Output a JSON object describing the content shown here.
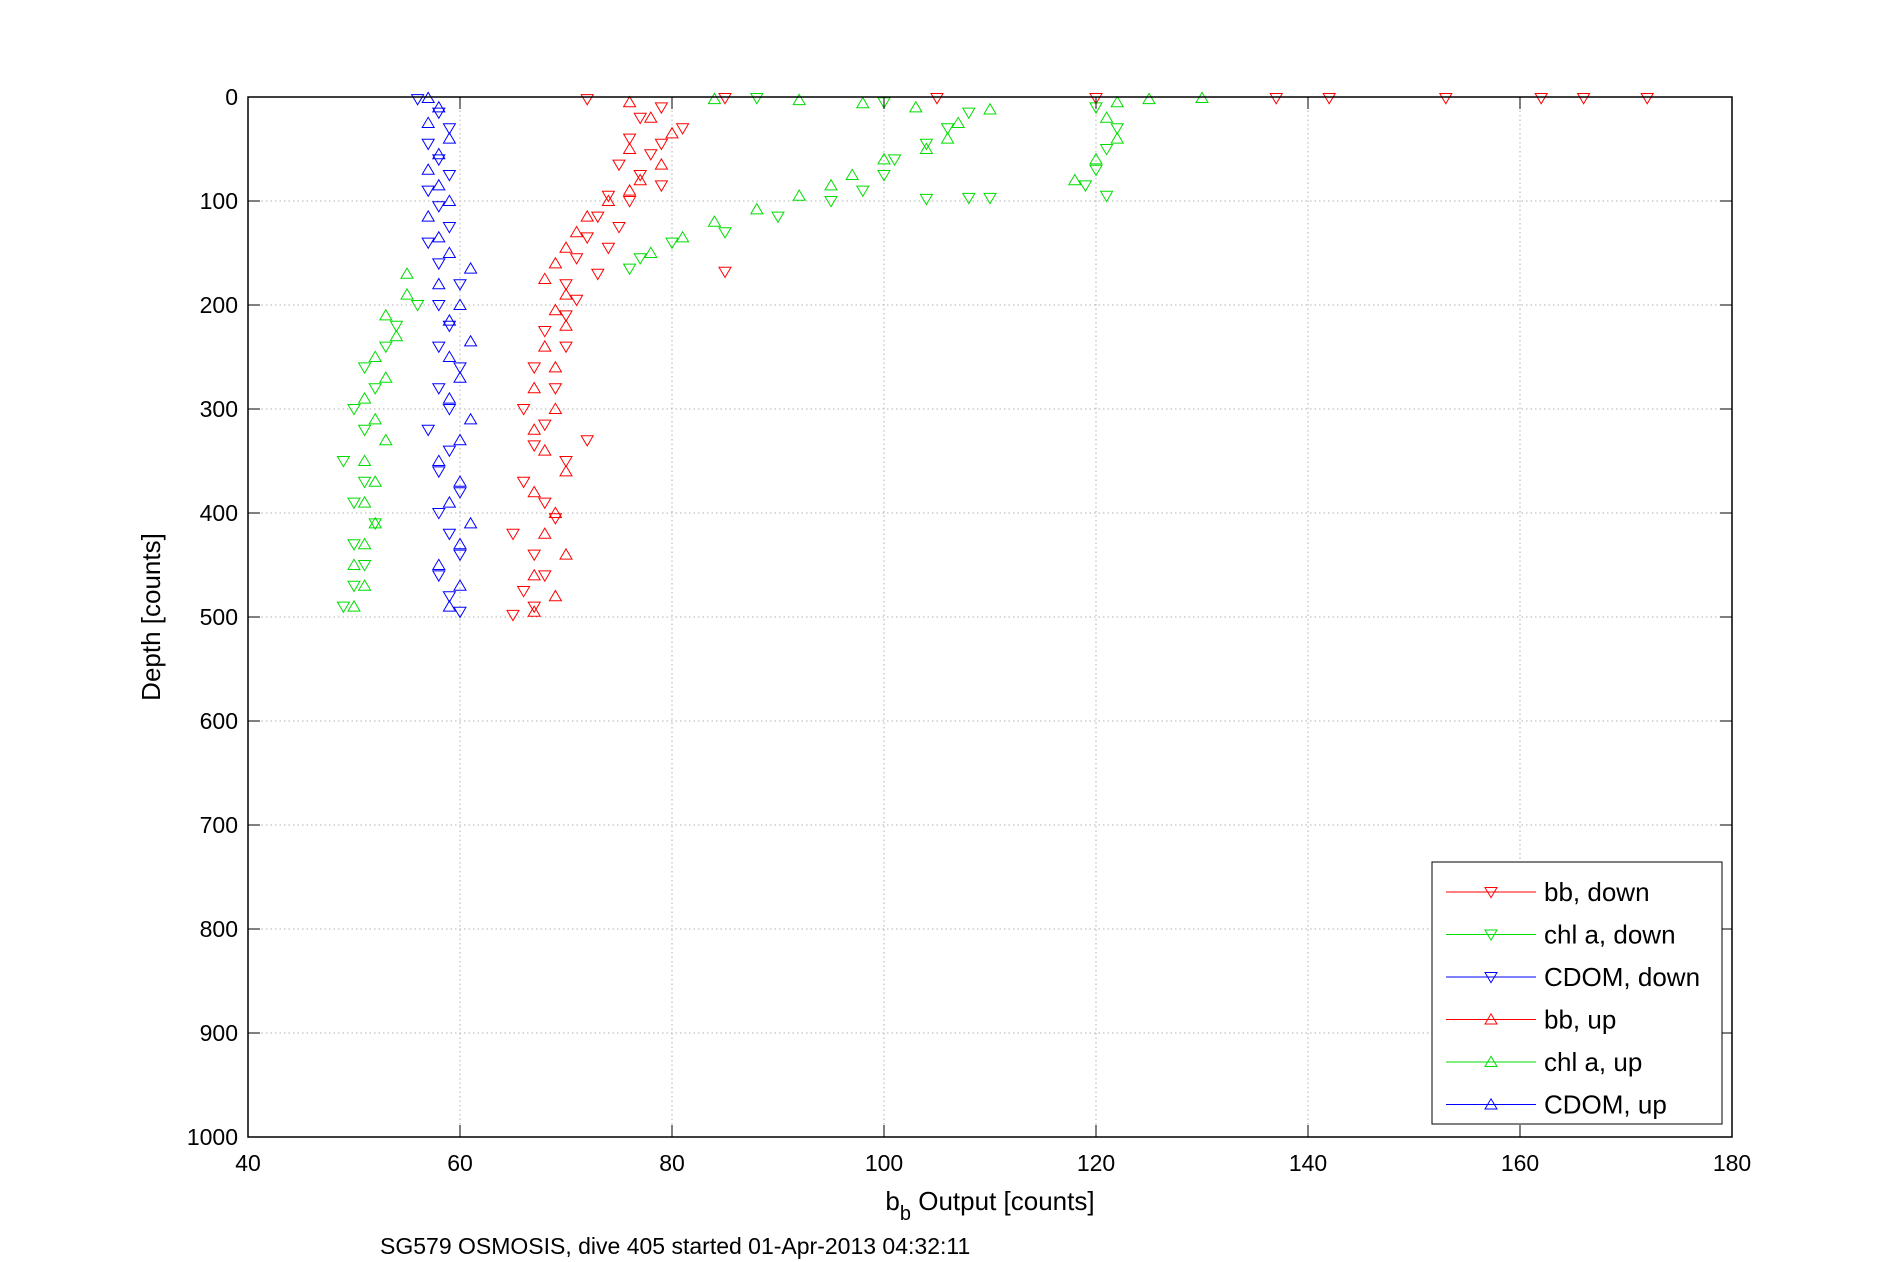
{
  "chart_data": {
    "type": "scatter",
    "xlabel_main": "b",
    "xlabel_sub": "b",
    "xlabel_rest": " Output [counts]",
    "ylabel": "Depth [counts]",
    "caption": "SG579 OSMOSIS, dive 405 started 01-Apr-2013 04:32:11",
    "xlim": [
      40,
      180
    ],
    "ylim": [
      0,
      1000
    ],
    "y_reversed": true,
    "x_ticks": [
      "40",
      "60",
      "80",
      "100",
      "120",
      "140",
      "160",
      "180"
    ],
    "y_ticks": [
      "0",
      "100",
      "200",
      "300",
      "400",
      "500",
      "600",
      "700",
      "800",
      "900",
      "1000"
    ],
    "grid": true,
    "legend_position": "bottom-right",
    "series": [
      {
        "name": "bb, down",
        "color": "#ff0000",
        "marker": "triangle-down",
        "points": [
          [
            72,
            2
          ],
          [
            85,
            1
          ],
          [
            105,
            1
          ],
          [
            120,
            1
          ],
          [
            137,
            1
          ],
          [
            142,
            1
          ],
          [
            153,
            1
          ],
          [
            162,
            1
          ],
          [
            166,
            1
          ],
          [
            172,
            1
          ],
          [
            79,
            10
          ],
          [
            77,
            20
          ],
          [
            81,
            30
          ],
          [
            76,
            40
          ],
          [
            79,
            45
          ],
          [
            78,
            55
          ],
          [
            75,
            65
          ],
          [
            77,
            75
          ],
          [
            79,
            85
          ],
          [
            74,
            95
          ],
          [
            76,
            100
          ],
          [
            73,
            115
          ],
          [
            75,
            125
          ],
          [
            72,
            135
          ],
          [
            74,
            145
          ],
          [
            71,
            155
          ],
          [
            73,
            170
          ],
          [
            85,
            168
          ],
          [
            70,
            180
          ],
          [
            71,
            195
          ],
          [
            70,
            210
          ],
          [
            68,
            225
          ],
          [
            70,
            240
          ],
          [
            67,
            260
          ],
          [
            69,
            280
          ],
          [
            66,
            300
          ],
          [
            68,
            315
          ],
          [
            67,
            335
          ],
          [
            72,
            330
          ],
          [
            70,
            350
          ],
          [
            66,
            370
          ],
          [
            68,
            390
          ],
          [
            69,
            405
          ],
          [
            65,
            420
          ],
          [
            67,
            440
          ],
          [
            68,
            460
          ],
          [
            66,
            475
          ],
          [
            67,
            490
          ],
          [
            65,
            498
          ]
        ]
      },
      {
        "name": "chl a, down",
        "color": "#00dd00",
        "marker": "triangle-down",
        "points": [
          [
            88,
            1
          ],
          [
            100,
            5
          ],
          [
            108,
            15
          ],
          [
            106,
            30
          ],
          [
            104,
            45
          ],
          [
            101,
            60
          ],
          [
            100,
            75
          ],
          [
            98,
            90
          ],
          [
            95,
            100
          ],
          [
            104,
            98
          ],
          [
            108,
            97
          ],
          [
            110,
            97
          ],
          [
            90,
            115
          ],
          [
            85,
            130
          ],
          [
            80,
            140
          ],
          [
            77,
            155
          ],
          [
            76,
            165
          ],
          [
            120,
            10
          ],
          [
            122,
            30
          ],
          [
            121,
            50
          ],
          [
            120,
            70
          ],
          [
            119,
            85
          ],
          [
            121,
            95
          ],
          [
            56,
            200
          ],
          [
            54,
            220
          ],
          [
            53,
            240
          ],
          [
            51,
            260
          ],
          [
            52,
            280
          ],
          [
            50,
            300
          ],
          [
            51,
            320
          ],
          [
            49,
            350
          ],
          [
            51,
            370
          ],
          [
            50,
            390
          ],
          [
            52,
            410
          ],
          [
            50,
            430
          ],
          [
            51,
            450
          ],
          [
            50,
            470
          ],
          [
            49,
            490
          ]
        ]
      },
      {
        "name": "CDOM, down",
        "color": "#0000ff",
        "marker": "triangle-down",
        "points": [
          [
            56,
            2
          ],
          [
            58,
            15
          ],
          [
            59,
            30
          ],
          [
            57,
            45
          ],
          [
            58,
            60
          ],
          [
            59,
            75
          ],
          [
            57,
            90
          ],
          [
            58,
            105
          ],
          [
            59,
            125
          ],
          [
            57,
            140
          ],
          [
            58,
            160
          ],
          [
            60,
            180
          ],
          [
            58,
            200
          ],
          [
            59,
            220
          ],
          [
            58,
            240
          ],
          [
            60,
            260
          ],
          [
            58,
            280
          ],
          [
            59,
            300
          ],
          [
            57,
            320
          ],
          [
            59,
            340
          ],
          [
            58,
            360
          ],
          [
            60,
            380
          ],
          [
            58,
            400
          ],
          [
            59,
            420
          ],
          [
            60,
            440
          ],
          [
            58,
            460
          ],
          [
            59,
            480
          ],
          [
            60,
            495
          ]
        ]
      },
      {
        "name": "bb, up",
        "color": "#ff0000",
        "marker": "triangle-up",
        "points": [
          [
            76,
            5
          ],
          [
            78,
            20
          ],
          [
            80,
            35
          ],
          [
            76,
            50
          ],
          [
            79,
            65
          ],
          [
            77,
            80
          ],
          [
            76,
            90
          ],
          [
            74,
            100
          ],
          [
            72,
            115
          ],
          [
            71,
            130
          ],
          [
            70,
            145
          ],
          [
            69,
            160
          ],
          [
            68,
            175
          ],
          [
            70,
            190
          ],
          [
            69,
            205
          ],
          [
            70,
            220
          ],
          [
            68,
            240
          ],
          [
            69,
            260
          ],
          [
            67,
            280
          ],
          [
            69,
            300
          ],
          [
            67,
            320
          ],
          [
            68,
            340
          ],
          [
            70,
            360
          ],
          [
            67,
            380
          ],
          [
            69,
            400
          ],
          [
            68,
            420
          ],
          [
            70,
            440
          ],
          [
            67,
            460
          ],
          [
            69,
            480
          ],
          [
            67,
            495
          ]
        ]
      },
      {
        "name": "chl a, up",
        "color": "#00dd00",
        "marker": "triangle-up",
        "points": [
          [
            84,
            2
          ],
          [
            92,
            3
          ],
          [
            98,
            6
          ],
          [
            103,
            10
          ],
          [
            110,
            12
          ],
          [
            107,
            25
          ],
          [
            106,
            40
          ],
          [
            104,
            50
          ],
          [
            100,
            60
          ],
          [
            97,
            75
          ],
          [
            95,
            85
          ],
          [
            92,
            95
          ],
          [
            88,
            108
          ],
          [
            84,
            120
          ],
          [
            81,
            135
          ],
          [
            78,
            150
          ],
          [
            122,
            5
          ],
          [
            125,
            2
          ],
          [
            130,
            1
          ],
          [
            121,
            20
          ],
          [
            122,
            40
          ],
          [
            120,
            60
          ],
          [
            118,
            80
          ],
          [
            55,
            170
          ],
          [
            55,
            190
          ],
          [
            53,
            210
          ],
          [
            54,
            230
          ],
          [
            52,
            250
          ],
          [
            53,
            270
          ],
          [
            51,
            290
          ],
          [
            52,
            310
          ],
          [
            53,
            330
          ],
          [
            51,
            350
          ],
          [
            52,
            370
          ],
          [
            51,
            390
          ],
          [
            52,
            410
          ],
          [
            51,
            430
          ],
          [
            50,
            450
          ],
          [
            51,
            470
          ],
          [
            50,
            490
          ]
        ]
      },
      {
        "name": "CDOM, up",
        "color": "#0000ff",
        "marker": "triangle-up",
        "points": [
          [
            57,
            1
          ],
          [
            58,
            10
          ],
          [
            57,
            25
          ],
          [
            59,
            40
          ],
          [
            58,
            55
          ],
          [
            57,
            70
          ],
          [
            58,
            85
          ],
          [
            59,
            100
          ],
          [
            57,
            115
          ],
          [
            58,
            135
          ],
          [
            59,
            150
          ],
          [
            61,
            165
          ],
          [
            58,
            180
          ],
          [
            60,
            200
          ],
          [
            59,
            215
          ],
          [
            61,
            235
          ],
          [
            59,
            250
          ],
          [
            60,
            270
          ],
          [
            59,
            290
          ],
          [
            61,
            310
          ],
          [
            60,
            330
          ],
          [
            58,
            350
          ],
          [
            60,
            370
          ],
          [
            59,
            390
          ],
          [
            61,
            410
          ],
          [
            60,
            430
          ],
          [
            58,
            450
          ],
          [
            60,
            470
          ],
          [
            59,
            490
          ]
        ]
      }
    ]
  }
}
